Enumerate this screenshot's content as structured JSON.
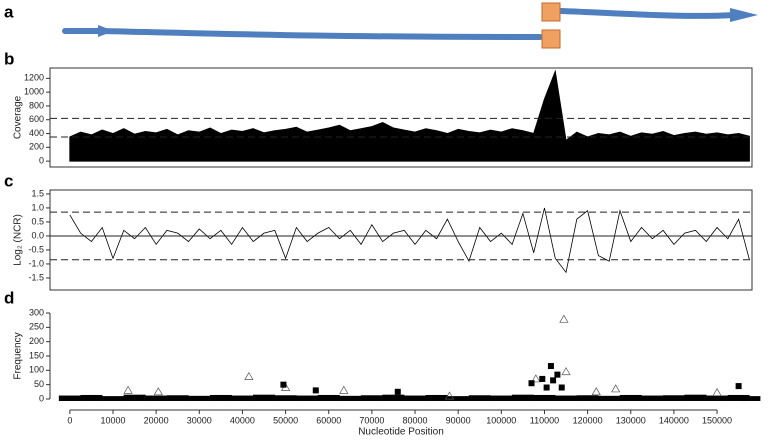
{
  "diagram": {
    "panel": "a"
  },
  "chart_data": [
    {
      "type": "area",
      "panel": "b",
      "ylabel": "Coverage",
      "color": "#000000",
      "x": [
        0,
        2500,
        5000,
        7500,
        10000,
        12500,
        15000,
        17500,
        20000,
        22500,
        25000,
        27500,
        30000,
        32500,
        35000,
        37500,
        40000,
        42500,
        45000,
        47500,
        50000,
        52500,
        55000,
        57500,
        60000,
        62500,
        65000,
        67500,
        70000,
        72500,
        75000,
        77500,
        80000,
        82500,
        85000,
        87500,
        90000,
        92500,
        95000,
        97500,
        100000,
        102500,
        105000,
        107500,
        110000,
        112500,
        115000,
        117500,
        120000,
        122500,
        125000,
        127500,
        130000,
        132500,
        135000,
        137500,
        140000,
        142500,
        145000,
        147500,
        150000,
        152500,
        155000,
        157500
      ],
      "values": [
        350,
        420,
        380,
        450,
        400,
        470,
        390,
        430,
        410,
        460,
        380,
        440,
        420,
        480,
        400,
        450,
        430,
        470,
        410,
        440,
        460,
        490,
        420,
        450,
        480,
        520,
        440,
        470,
        500,
        560,
        480,
        450,
        420,
        470,
        440,
        400,
        460,
        430,
        410,
        450,
        420,
        470,
        440,
        400,
        900,
        1300,
        300,
        420,
        350,
        400,
        380,
        420,
        360,
        410,
        390,
        430,
        370,
        400,
        420,
        390,
        410,
        380,
        400,
        360
      ],
      "xlim": [
        -4600,
        158100
      ],
      "ylim": [
        -85,
        1350
      ],
      "yticks": [
        0,
        200,
        400,
        600,
        800,
        1000,
        1200
      ],
      "hlines": [
        {
          "value": 620,
          "style": "dashed"
        },
        {
          "value": 350,
          "style": "dashed"
        }
      ]
    },
    {
      "type": "line",
      "panel": "c",
      "ylabel": "Log₂ (NCR)",
      "color": "#000000",
      "x": [
        0,
        2500,
        5000,
        7500,
        10000,
        12500,
        15000,
        17500,
        20000,
        22500,
        25000,
        27500,
        30000,
        32500,
        35000,
        37500,
        40000,
        42500,
        45000,
        47500,
        50000,
        52500,
        55000,
        57500,
        60000,
        62500,
        65000,
        67500,
        70000,
        72500,
        75000,
        77500,
        80000,
        82500,
        85000,
        87500,
        90000,
        92500,
        95000,
        97500,
        100000,
        102500,
        105000,
        107500,
        110000,
        112500,
        115000,
        117500,
        120000,
        122500,
        125000,
        127500,
        130000,
        132500,
        135000,
        137500,
        140000,
        142500,
        145000,
        147500,
        150000,
        152500,
        155000,
        157500
      ],
      "values": [
        0.75,
        0.1,
        -0.2,
        0.3,
        -0.8,
        0.2,
        -0.1,
        0.3,
        -0.3,
        0.2,
        0.1,
        -0.2,
        0.25,
        -0.1,
        0.2,
        -0.3,
        0.3,
        -0.2,
        0.1,
        0.2,
        -0.8,
        0.3,
        -0.2,
        0.1,
        0.3,
        -0.1,
        0.2,
        -0.3,
        0.4,
        -0.2,
        0.1,
        0.2,
        -0.3,
        0.2,
        -0.1,
        0.6,
        -0.2,
        -0.9,
        0.3,
        -0.2,
        0.1,
        -0.3,
        0.8,
        -0.6,
        1.0,
        -0.8,
        -1.3,
        0.6,
        0.9,
        -0.7,
        -0.9,
        0.9,
        -0.2,
        0.3,
        -0.1,
        0.2,
        -0.3,
        0.1,
        0.2,
        -0.2,
        0.3,
        -0.1,
        0.6,
        -0.85
      ],
      "xlim": [
        -4600,
        158100
      ],
      "ylim": [
        -1.93,
        1.64
      ],
      "yticks": [
        -1.5,
        {
          "value": -1,
          "label": "-1.0"
        },
        -0.5,
        {
          "value": 0,
          "label": "0.0"
        },
        0.5,
        {
          "value": 1,
          "label": "1.0"
        },
        1.5
      ],
      "hlines": [
        {
          "value": 0.85,
          "style": "dashed"
        },
        {
          "value": 0,
          "style": "solid"
        },
        {
          "value": -0.85,
          "style": "dashed"
        }
      ]
    },
    {
      "type": "scatter",
      "panel": "d",
      "ylabel": "Frequency",
      "xlabel": "Nucleotide Position",
      "xlim": [
        -4600,
        158100
      ],
      "ylim": [
        -21,
        321
      ],
      "yticks": [
        0,
        50,
        100,
        150,
        200,
        250,
        300
      ],
      "xticks": [
        0,
        10000,
        20000,
        30000,
        40000,
        50000,
        60000,
        70000,
        80000,
        90000,
        100000,
        110000,
        120000,
        130000,
        140000,
        150000
      ],
      "series": [
        {
          "marker": "band",
          "color": "#000000",
          "x": [
            0,
            5000,
            10000,
            15000,
            20000,
            25000,
            30000,
            35000,
            40000,
            45000,
            50000,
            55000,
            60000,
            65000,
            70000,
            75000,
            80000,
            85000,
            90000,
            95000,
            100000,
            105000,
            110000,
            115000,
            120000,
            125000,
            130000,
            135000,
            140000,
            145000,
            150000,
            155000,
            157500
          ],
          "values": [
            12,
            14,
            10,
            15,
            12,
            13,
            11,
            14,
            12,
            15,
            13,
            12,
            14,
            11,
            13,
            15,
            12,
            14,
            10,
            13,
            12,
            15,
            14,
            12,
            13,
            11,
            14,
            12,
            13,
            15,
            12,
            14,
            10
          ]
        },
        {
          "marker": "triangle",
          "color": "#555555",
          "x": [
            13500,
            20500,
            41500,
            50000,
            63500,
            88000,
            108000,
            114500,
            115000,
            122000,
            126500,
            150000
          ],
          "values": [
            30,
            25,
            78,
            40,
            30,
            10,
            70,
            278,
            95,
            25,
            35,
            22
          ]
        },
        {
          "marker": "square",
          "color": "#000000",
          "x": [
            49500,
            57000,
            76000,
            107000,
            109500,
            110500,
            111500,
            112000,
            113000,
            114000,
            155000
          ],
          "values": [
            50,
            30,
            25,
            55,
            70,
            40,
            115,
            65,
            85,
            40,
            45
          ]
        }
      ]
    }
  ]
}
